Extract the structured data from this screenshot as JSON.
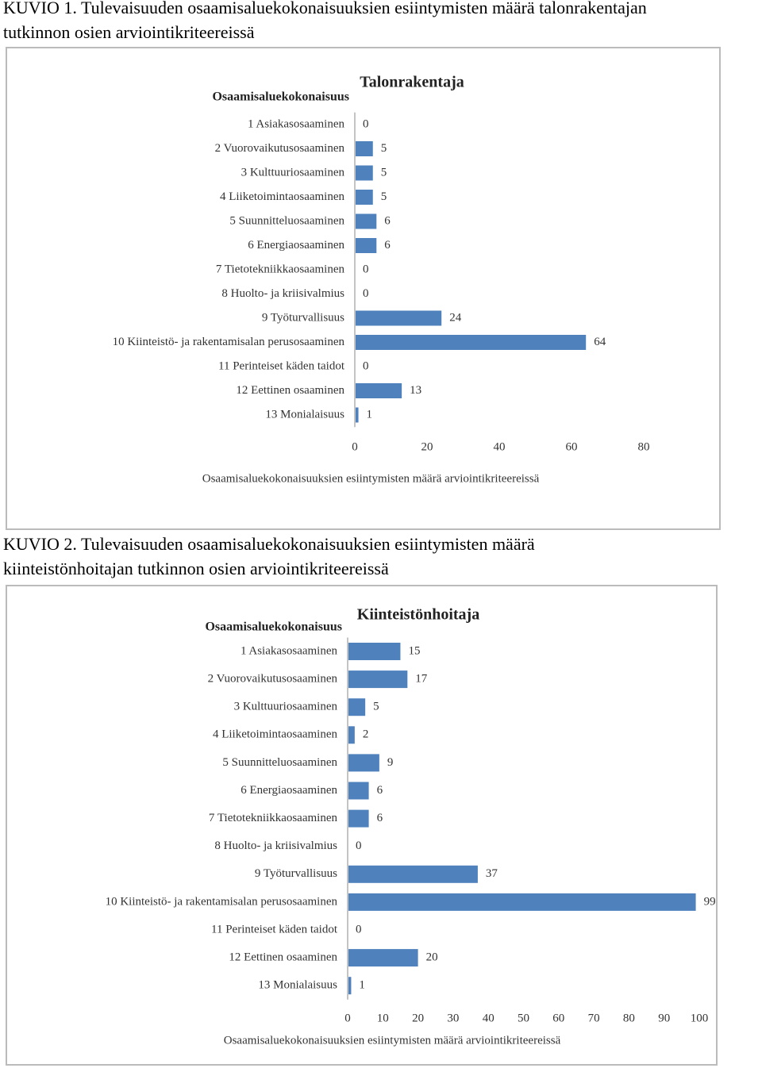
{
  "chart_data": [
    {
      "type": "bar",
      "orientation": "horizontal",
      "caption": [
        "KUVIO 1. Tulevaisuuden osaamisaluekokonaisuuksien esiintymisten määrä talonrakentajan",
        "tutkinnon osien arviointikriteereissä"
      ],
      "title": "Talonrakentaja",
      "category_axis_title": "Osaamisaluekokonaisuus",
      "value_axis_title": "Osaamisaluekokonaisuuksien esiintymisten määrä arviointikriteereissä",
      "categories": [
        "1 Asiakasosaaminen",
        "2 Vuorovaikutusosaaminen",
        "3 Kulttuuriosaaminen",
        "4 Liiketoimintaosaaminen",
        "5 Suunnitteluosaaminen",
        "6 Energiaosaaminen",
        "7 Tietotekniikkaosaaminen",
        "8 Huolto- ja kriisivalmius",
        "9 Työturvallisuus",
        "10 Kiinteistö- ja rakentamisalan perusosaaminen",
        "11 Perinteiset käden taidot",
        "12 Eettinen osaaminen",
        "13 Monialaisuus"
      ],
      "values": [
        0,
        5,
        5,
        5,
        6,
        6,
        0,
        0,
        24,
        64,
        0,
        13,
        1
      ],
      "color": "#4f81bd",
      "xlim": [
        0,
        80
      ],
      "xticks": [
        0,
        20,
        40,
        60,
        80
      ]
    },
    {
      "type": "bar",
      "orientation": "horizontal",
      "caption": [
        "KUVIO 2. Tulevaisuuden osaamisaluekokonaisuuksien esiintymisten määrä",
        "kiinteistönhoitajan tutkinnon osien arviointikriteereissä"
      ],
      "title": "Kiinteistönhoitaja",
      "category_axis_title": "Osaamisaluekokonaisuus",
      "value_axis_title": "Osaamisaluekokonaisuuksien esiintymisten määrä arviointikriteereissä",
      "categories": [
        "1 Asiakasosaaminen",
        "2 Vuorovaikutusosaaminen",
        "3 Kulttuuriosaaminen",
        "4 Liiketoimintaosaaminen",
        "5 Suunnitteluosaaminen",
        "6 Energiaosaaminen",
        "7 Tietotekniikkaosaaminen",
        "8 Huolto- ja kriisivalmius",
        "9 Työturvallisuus",
        "10 Kiinteistö- ja rakentamisalan perusosaaminen",
        "11 Perinteiset käden taidot",
        "12 Eettinen osaaminen",
        "13 Monialaisuus"
      ],
      "values": [
        15,
        17,
        5,
        2,
        9,
        6,
        6,
        0,
        37,
        99,
        0,
        20,
        1
      ],
      "color": "#4f81bd",
      "xlim": [
        0,
        100
      ],
      "xticks": [
        0,
        10,
        20,
        30,
        40,
        50,
        60,
        70,
        80,
        90,
        100
      ]
    }
  ]
}
